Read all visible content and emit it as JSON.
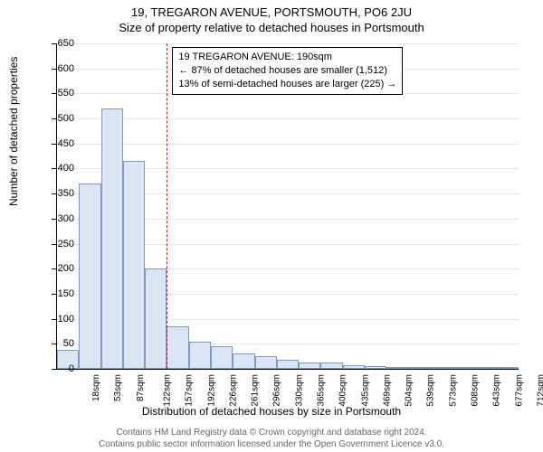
{
  "titles": {
    "main": "19, TREGARON AVENUE, PORTSMOUTH, PO6 2JU",
    "sub": "Size of property relative to detached houses in Portsmouth"
  },
  "axes": {
    "y_label": "Number of detached properties",
    "x_label": "Distribution of detached houses by size in Portsmouth",
    "ylim": [
      0,
      650
    ],
    "ytick_step": 50
  },
  "chart": {
    "type": "histogram",
    "bar_color": "#dbe6f5",
    "bar_border_color": "#7a9ac5",
    "grid_color": "#cccccc",
    "background_color": "#ffffff",
    "refline_color": "#ff0000",
    "refline_x_index": 5,
    "categories": [
      "18sqm",
      "53sqm",
      "87sqm",
      "122sqm",
      "157sqm",
      "192sqm",
      "226sqm",
      "261sqm",
      "296sqm",
      "330sqm",
      "365sqm",
      "400sqm",
      "435sqm",
      "469sqm",
      "504sqm",
      "539sqm",
      "573sqm",
      "608sqm",
      "643sqm",
      "677sqm",
      "712sqm"
    ],
    "values": [
      38,
      370,
      520,
      415,
      200,
      85,
      55,
      45,
      30,
      25,
      18,
      12,
      12,
      7,
      5,
      4,
      4,
      3,
      3,
      3,
      2
    ]
  },
  "annotation": {
    "line1": "19 TREGARON AVENUE: 190sqm",
    "line2": "← 87% of detached houses are smaller (1,512)",
    "line3": "13% of semi-detached houses are larger (225) →"
  },
  "footer": {
    "line1": "Contains HM Land Registry data © Crown copyright and database right 2024.",
    "line2": "Contains public sector information licensed under the Open Government Licence v3.0."
  }
}
